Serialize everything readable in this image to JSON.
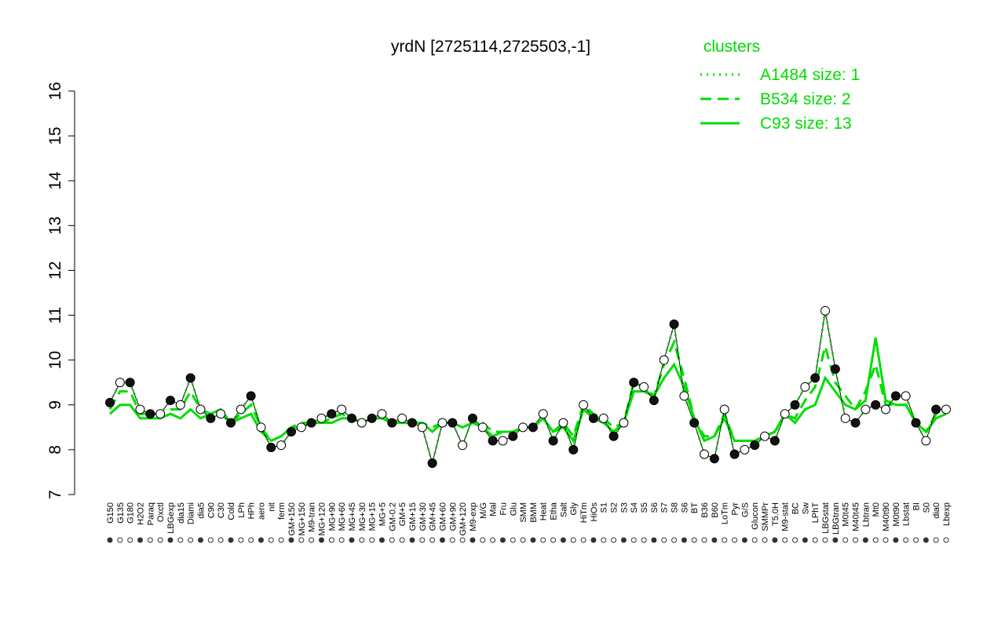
{
  "chart_data": {
    "type": "line",
    "title": "yrdN [2725114,2725503,-1]",
    "legend_title": "clusters",
    "legend_position": "top-right",
    "categories": [
      "G150",
      "G135",
      "G180",
      "H2O2",
      "Paraq",
      "Oxctl",
      "LBGexp",
      "dia15",
      "Diami",
      "dia5",
      "C90",
      "C30",
      "Cold",
      "LPh",
      "HPh",
      "aero",
      "nit",
      "ferm",
      "GM+150",
      "MG+150",
      "M9-tran",
      "MG+120",
      "MG+90",
      "MG+60",
      "MG+45",
      "MG+30",
      "MG+15",
      "MG+5",
      "GM-0.2",
      "GM+5",
      "GM+15",
      "GM+30",
      "GM+45",
      "GM+60",
      "GM+90",
      "GM+120",
      "M9-exp",
      "M/G",
      "Mal",
      "Fru",
      "Glu",
      "SMM",
      "BMM",
      "Heat",
      "Etha",
      "Salt",
      "Gly",
      "HiTm",
      "HiOs",
      "S1",
      "S2",
      "S3",
      "S4",
      "S5",
      "S6",
      "S7",
      "S8",
      "S6",
      "BT",
      "B36",
      "B60",
      "LoTm",
      "Pyr",
      "G/S",
      "Glucon",
      "SMMPr",
      "T5.0H",
      "M9-stat",
      "BC",
      "Sw",
      "LPhT",
      "LBGstat",
      "LBGtran",
      "M0t45",
      "M40t45",
      "Lbtran",
      "Mt0",
      "M40t90",
      "M0t90",
      "Lbstat",
      "BI",
      "S0",
      "dia0",
      "Lbexp"
    ],
    "series": [
      {
        "name": "A1484 size: 1",
        "color": "#00dd00",
        "dash": "dotted",
        "markers": true,
        "values": [
          9.05,
          9.5,
          9.5,
          8.9,
          8.8,
          8.8,
          9.1,
          9.0,
          9.6,
          8.9,
          8.7,
          8.8,
          8.6,
          8.9,
          9.2,
          8.5,
          8.05,
          8.1,
          8.4,
          8.5,
          8.6,
          8.7,
          8.8,
          8.9,
          8.7,
          8.6,
          8.7,
          8.8,
          8.6,
          8.7,
          8.6,
          8.5,
          7.7,
          8.6,
          8.6,
          8.1,
          8.7,
          8.5,
          8.2,
          8.2,
          8.3,
          8.5,
          8.5,
          8.8,
          8.2,
          8.6,
          8.0,
          9.0,
          8.7,
          8.7,
          8.3,
          8.6,
          9.5,
          9.4,
          9.1,
          10.0,
          10.8,
          9.2,
          8.6,
          7.9,
          7.8,
          8.9,
          7.9,
          8.0,
          8.1,
          8.3,
          8.2,
          8.8,
          9.0,
          9.4,
          9.6,
          11.1,
          9.8,
          8.7,
          8.6,
          8.9,
          9.0,
          8.9,
          9.2,
          9.2,
          8.6,
          8.2,
          8.9,
          8.9
        ]
      },
      {
        "name": "B534 size: 2",
        "color": "#00dd00",
        "dash": "dashed",
        "markers": false,
        "values": [
          8.9,
          9.3,
          9.3,
          8.8,
          8.8,
          8.8,
          8.9,
          8.9,
          9.3,
          8.9,
          8.8,
          8.8,
          8.6,
          8.8,
          9.0,
          8.5,
          8.2,
          8.3,
          8.5,
          8.6,
          8.6,
          8.6,
          8.7,
          8.8,
          8.7,
          8.6,
          8.7,
          8.7,
          8.6,
          8.6,
          8.6,
          8.6,
          8.5,
          8.6,
          8.6,
          8.5,
          8.6,
          8.6,
          8.4,
          8.4,
          8.4,
          8.5,
          8.5,
          8.7,
          8.4,
          8.6,
          8.3,
          9.0,
          8.8,
          8.7,
          8.5,
          8.6,
          9.5,
          9.4,
          9.2,
          9.9,
          10.4,
          9.6,
          8.7,
          8.3,
          8.3,
          8.8,
          8.2,
          8.2,
          8.2,
          8.3,
          8.4,
          8.8,
          8.7,
          9.1,
          9.4,
          10.3,
          9.5,
          9.2,
          8.9,
          9.3,
          9.9,
          9.0,
          9.0,
          9.0,
          8.6,
          8.4,
          8.8,
          8.9
        ]
      },
      {
        "name": "C93 size: 13",
        "color": "#00dd00",
        "dash": "solid",
        "markers": false,
        "values": [
          8.8,
          9.0,
          9.0,
          8.7,
          8.7,
          8.7,
          8.8,
          8.7,
          8.9,
          8.7,
          8.8,
          8.9,
          8.6,
          8.7,
          8.8,
          8.4,
          8.2,
          8.3,
          8.5,
          8.5,
          8.6,
          8.6,
          8.6,
          8.7,
          8.7,
          8.6,
          8.7,
          8.7,
          8.6,
          8.6,
          8.6,
          8.6,
          8.4,
          8.6,
          8.6,
          8.5,
          8.6,
          8.5,
          8.3,
          8.4,
          8.4,
          8.5,
          8.5,
          8.7,
          8.4,
          8.5,
          8.2,
          8.9,
          8.7,
          8.6,
          8.4,
          8.6,
          9.3,
          9.3,
          9.2,
          9.6,
          9.9,
          9.4,
          8.7,
          8.2,
          8.3,
          8.7,
          8.2,
          8.2,
          8.2,
          8.3,
          8.4,
          8.8,
          8.6,
          8.9,
          9.0,
          9.6,
          9.3,
          9.0,
          8.9,
          9.1,
          10.5,
          9.1,
          9.0,
          9.0,
          8.6,
          8.4,
          8.7,
          8.8
        ]
      }
    ],
    "ylim": [
      7,
      16
    ],
    "yticks": [
      7,
      8,
      9,
      10,
      11,
      12,
      13,
      14,
      15,
      16
    ],
    "grid": false
  }
}
